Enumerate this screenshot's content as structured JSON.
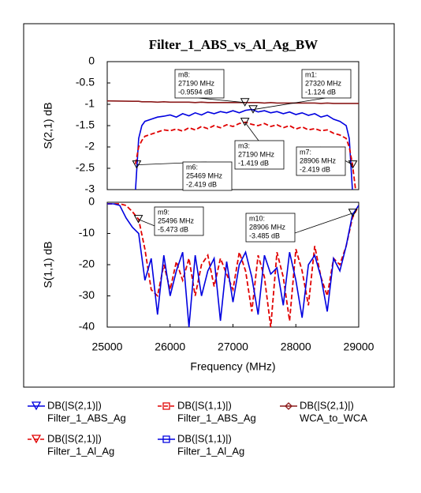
{
  "chart_data": [
    {
      "type": "line",
      "title": "Filter_1_ABS_vs_Al_Ag_BW",
      "ylabel": "S(2,1) dB",
      "xlim": [
        25000,
        29000
      ],
      "ylim": [
        -3,
        0
      ],
      "yticks": [
        0,
        -0.5,
        -1,
        -1.5,
        -2,
        -2.5,
        -3
      ],
      "x": [
        25000,
        25400,
        25450,
        25500,
        25550,
        25600,
        25700,
        25800,
        25900,
        26000,
        26100,
        26200,
        26300,
        26400,
        26500,
        26600,
        26700,
        26800,
        26900,
        27000,
        27100,
        27200,
        27300,
        27400,
        27500,
        27600,
        27700,
        27800,
        27900,
        28000,
        28100,
        28200,
        28300,
        28400,
        28500,
        28600,
        28700,
        28800,
        28850,
        28900,
        28950,
        29000
      ],
      "series": [
        {
          "measure": "DB(|S(2,1)|)",
          "name": "Filter_1_ABS_Ag",
          "color": "#0000e0",
          "line_style": "solid",
          "marker": "triangle",
          "values": [
            null,
            null,
            -3,
            -1.8,
            -1.5,
            -1.4,
            -1.35,
            -1.3,
            -1.28,
            -1.25,
            -1.3,
            -1.22,
            -1.27,
            -1.2,
            -1.25,
            -1.18,
            -1.22,
            -1.17,
            -1.2,
            -1.15,
            -1.2,
            -1.14,
            -1.12,
            -1.18,
            -1.15,
            -1.2,
            -1.17,
            -1.22,
            -1.18,
            -1.24,
            -1.2,
            -1.26,
            -1.22,
            -1.3,
            -1.26,
            -1.35,
            -1.4,
            -1.5,
            -1.8,
            -3,
            null,
            null
          ]
        },
        {
          "measure": "DB(|S(2,1)|)",
          "name": "WCA_to_WCA",
          "color": "#8b1a1a",
          "line_style": "solid",
          "marker": "diamond",
          "values": [
            -0.92,
            -0.93,
            -0.93,
            -0.93,
            -0.94,
            -0.94,
            -0.94,
            -0.95,
            -0.94,
            -0.95,
            -0.95,
            -0.95,
            -0.95,
            -0.96,
            -0.95,
            -0.96,
            -0.96,
            -0.96,
            -0.96,
            -0.96,
            -0.96,
            -0.96,
            -0.96,
            -0.96,
            -0.97,
            -0.96,
            -0.97,
            -0.97,
            -0.97,
            -0.97,
            -0.97,
            -0.97,
            -0.97,
            -0.98,
            -0.97,
            -0.98,
            -0.98,
            -0.98,
            -0.98,
            -0.98,
            -0.98,
            -0.98
          ]
        },
        {
          "measure": "DB(|S(2,1)|)",
          "name": "Filter_1_Al_Ag",
          "color": "#e00000",
          "line_style": "dashed",
          "marker": "triangle",
          "values": [
            null,
            null,
            -2.4,
            -2.0,
            -1.85,
            -1.75,
            -1.7,
            -1.65,
            -1.6,
            -1.62,
            -1.58,
            -1.63,
            -1.55,
            -1.6,
            -1.52,
            -1.57,
            -1.5,
            -1.55,
            -1.48,
            -1.52,
            -1.45,
            -1.42,
            -1.47,
            -1.5,
            -1.45,
            -1.52,
            -1.48,
            -1.55,
            -1.5,
            -1.58,
            -1.53,
            -1.6,
            -1.57,
            -1.62,
            -1.6,
            -1.68,
            -1.72,
            -1.8,
            -2.0,
            -2.4,
            -3,
            null
          ]
        }
      ],
      "annotations": [
        {
          "name": "m8:",
          "x": 27190,
          "y": -0.9594,
          "x_label": "27190 MHz",
          "y_label": "-0.9594 dB"
        },
        {
          "name": "m1:",
          "x": 27320,
          "y": -1.124,
          "x_label": "27320 MHz",
          "y_label": "-1.124 dB"
        },
        {
          "name": "m3:",
          "x": 27190,
          "y": -1.419,
          "x_label": "27190 MHz",
          "y_label": "-1.419 dB"
        },
        {
          "name": "m6:",
          "x": 25469,
          "y": -2.419,
          "x_label": "25469 MHz",
          "y_label": "-2.419 dB"
        },
        {
          "name": "m7:",
          "x": 28906,
          "y": -2.419,
          "x_label": "28906 MHz",
          "y_label": "-2.419 dB"
        }
      ]
    },
    {
      "type": "line",
      "xlabel": "Frequency (MHz)",
      "ylabel": "S(1,1) dB",
      "xlim": [
        25000,
        29000
      ],
      "xticks": [
        25000,
        26000,
        27000,
        28000,
        29000
      ],
      "ylim": [
        -40,
        0
      ],
      "yticks": [
        0,
        -10,
        -20,
        -30,
        -40
      ],
      "x": [
        25000,
        25100,
        25200,
        25300,
        25400,
        25500,
        25600,
        25700,
        25800,
        25900,
        26000,
        26100,
        26200,
        26300,
        26400,
        26500,
        26600,
        26700,
        26800,
        26900,
        27000,
        27100,
        27200,
        27300,
        27400,
        27500,
        27600,
        27700,
        27800,
        27900,
        28000,
        28100,
        28200,
        28300,
        28400,
        28500,
        28600,
        28700,
        28800,
        28900,
        29000
      ],
      "series": [
        {
          "measure": "DB(|S(1,1)|)",
          "name": "Filter_1_ABS_Ag",
          "color": "#e00000",
          "line_style": "dashed",
          "marker": "square",
          "values": [
            -0.5,
            -0.5,
            -0.5,
            -1,
            -3,
            -5.5,
            -15,
            -28,
            -30,
            -20,
            -28,
            -19,
            -25,
            -18,
            -30,
            -20,
            -17,
            -27,
            -18,
            -23,
            -28,
            -16,
            -22,
            -35,
            -17,
            -24,
            -40,
            -16,
            -24,
            -38,
            -15,
            -22,
            -33,
            -14,
            -24,
            -30,
            -18,
            -20,
            -14,
            -5,
            -1
          ]
        },
        {
          "measure": "DB(|S(1,1)|)",
          "name": "Filter_1_Al_Ag",
          "color": "#0000e0",
          "line_style": "solid",
          "marker": "square",
          "values": [
            -0.5,
            -0.5,
            -1,
            -5,
            -8,
            -10,
            -25,
            -18,
            -36,
            -17,
            -30,
            -22,
            -16,
            -40,
            -17,
            -30,
            -22,
            -18,
            -38,
            -19,
            -32,
            -20,
            -16,
            -24,
            -36,
            -17,
            -23,
            -21,
            -33,
            -16,
            -25,
            -37,
            -20,
            -17,
            -24,
            -35,
            -18,
            -22,
            -14,
            -4,
            -1
          ]
        }
      ],
      "annotations": [
        {
          "name": "m9:",
          "x": 25496,
          "y": -5.473,
          "x_label": "25496 MHz",
          "y_label": "-5.473 dB"
        },
        {
          "name": "m10:",
          "x": 28906,
          "y": -3.485,
          "x_label": "28906 MHz",
          "y_label": "-3.485 dB"
        }
      ]
    }
  ]
}
